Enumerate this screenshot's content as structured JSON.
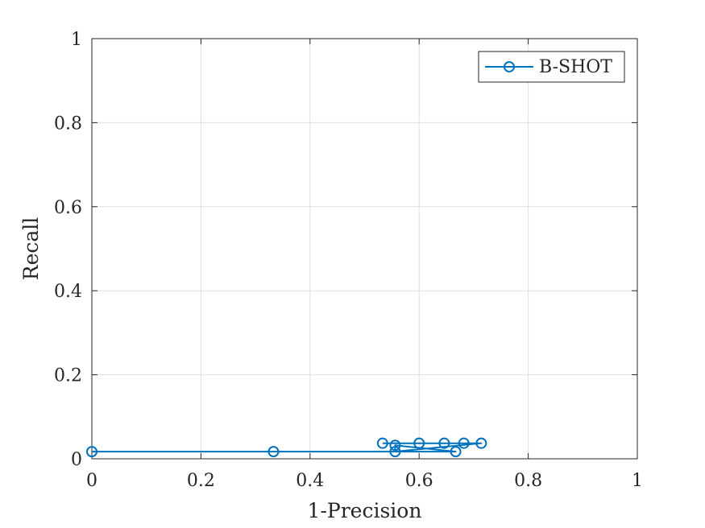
{
  "chart_data": {
    "type": "line",
    "title": "",
    "xlabel": "1-Precision",
    "ylabel": "Recall",
    "xlim": [
      0,
      1
    ],
    "ylim": [
      0,
      1
    ],
    "x_ticks": [
      0,
      0.2,
      0.4,
      0.6,
      0.8,
      1
    ],
    "y_ticks": [
      0,
      0.2,
      0.4,
      0.6,
      0.8,
      1
    ],
    "x_tick_labels": [
      "0",
      "0.2",
      "0.4",
      "0.6",
      "0.8",
      "1"
    ],
    "y_tick_labels": [
      "0",
      "0.2",
      "0.4",
      "0.6",
      "0.8",
      "1"
    ],
    "grid": true,
    "legend": {
      "position": "top-right"
    },
    "series": [
      {
        "name": "B-SHOT",
        "color": "#0072BD",
        "marker": "circle-open",
        "points": [
          {
            "x": 0.0,
            "y": 0.017
          },
          {
            "x": 0.333,
            "y": 0.017
          },
          {
            "x": 0.667,
            "y": 0.017
          },
          {
            "x": 0.556,
            "y": 0.032
          },
          {
            "x": 0.556,
            "y": 0.017
          },
          {
            "x": 0.714,
            "y": 0.037
          },
          {
            "x": 0.682,
            "y": 0.037
          },
          {
            "x": 0.646,
            "y": 0.037
          },
          {
            "x": 0.6,
            "y": 0.037
          },
          {
            "x": 0.533,
            "y": 0.037
          }
        ]
      }
    ]
  }
}
